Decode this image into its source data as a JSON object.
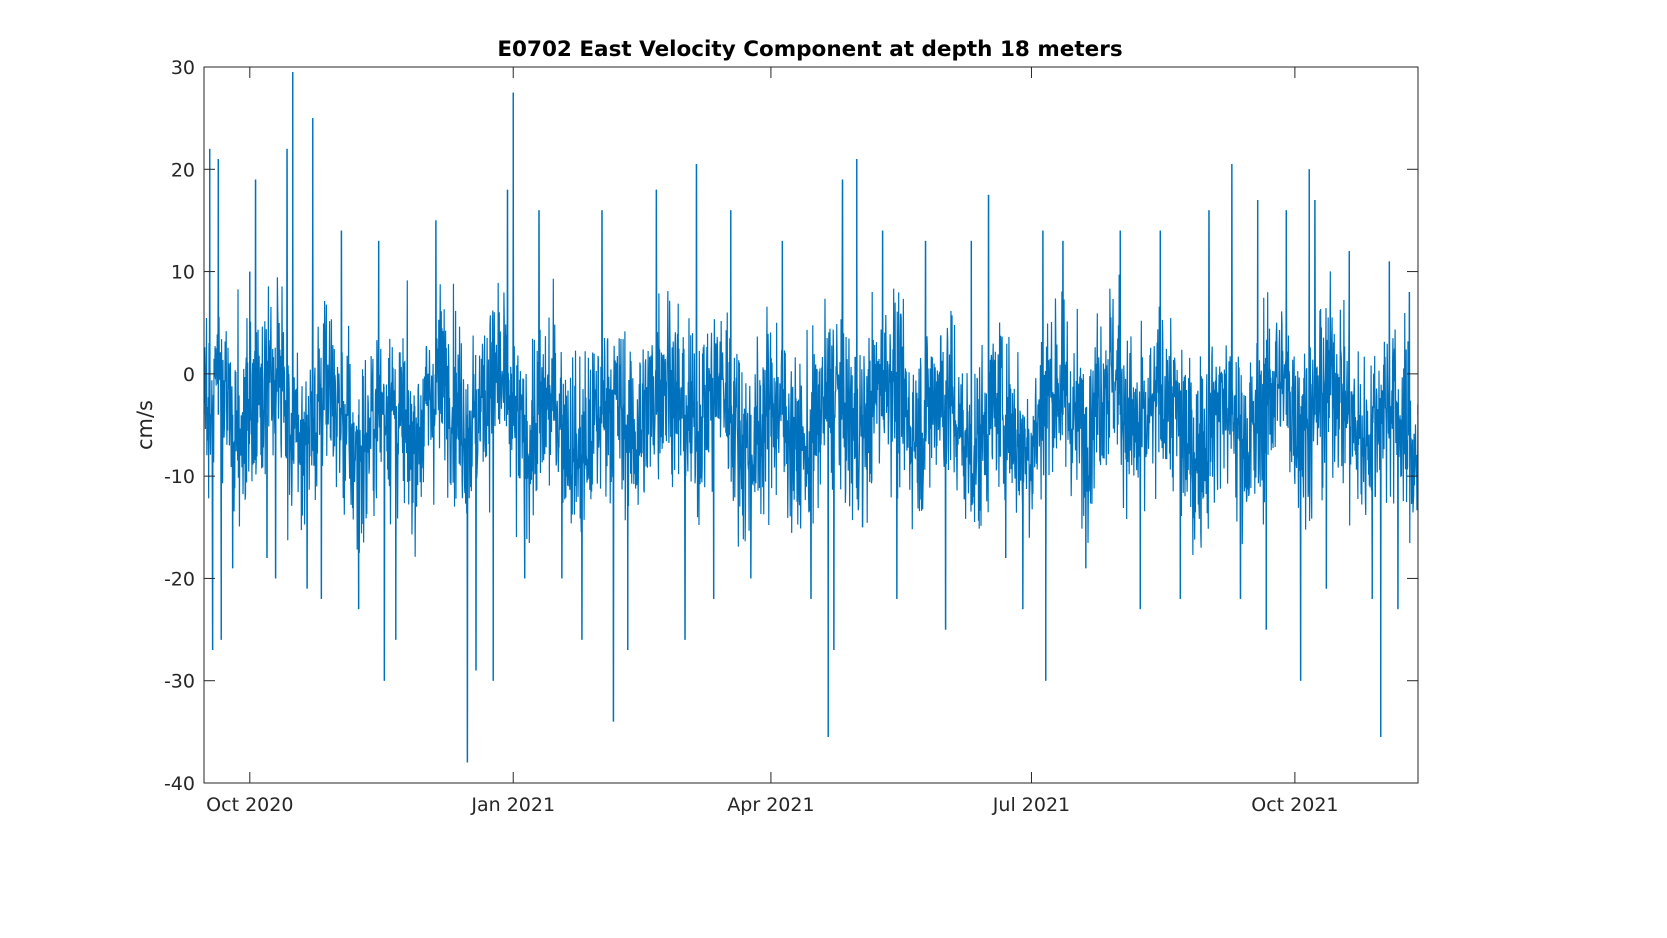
{
  "chart_data": {
    "type": "line",
    "title": "E0702 East Velocity Component at depth 18 meters",
    "xlabel": "",
    "ylabel": "cm/s",
    "xlim": [
      "2020-09-15",
      "2021-11-13"
    ],
    "ylim": [
      -40,
      30
    ],
    "yticks": [
      {
        "value": 30,
        "label": "30"
      },
      {
        "value": 20,
        "label": "20"
      },
      {
        "value": 10,
        "label": "10"
      },
      {
        "value": 0,
        "label": "0"
      },
      {
        "value": -10,
        "label": "-10"
      },
      {
        "value": -20,
        "label": "-20"
      },
      {
        "value": -30,
        "label": "-30"
      },
      {
        "value": -40,
        "label": "-40"
      }
    ],
    "xticks": [
      {
        "date": "2020-10-01",
        "label": "Oct 2020"
      },
      {
        "date": "2021-01-01",
        "label": "Jan 2021"
      },
      {
        "date": "2021-04-01",
        "label": "Apr 2021"
      },
      {
        "date": "2021-07-01",
        "label": "Jul 2021"
      },
      {
        "date": "2021-10-01",
        "label": "Oct 2021"
      }
    ],
    "grid": false,
    "line_color": "#0072BD",
    "series": [
      {
        "values": [
          {
            "x": "2020-09-15",
            "y": -3
          },
          {
            "x": "2020-09-17",
            "y": 22
          },
          {
            "x": "2020-09-18",
            "y": -27
          },
          {
            "x": "2020-09-20",
            "y": 21
          },
          {
            "x": "2020-09-21",
            "y": -26
          },
          {
            "x": "2020-09-25",
            "y": -19
          },
          {
            "x": "2020-10-01",
            "y": 10
          },
          {
            "x": "2020-10-03",
            "y": 19
          },
          {
            "x": "2020-10-07",
            "y": -18
          },
          {
            "x": "2020-10-10",
            "y": -20
          },
          {
            "x": "2020-10-14",
            "y": 22
          },
          {
            "x": "2020-10-16",
            "y": 29.5
          },
          {
            "x": "2020-10-18",
            "y": -7
          },
          {
            "x": "2020-10-21",
            "y": -21
          },
          {
            "x": "2020-10-23",
            "y": 25
          },
          {
            "x": "2020-10-26",
            "y": -22
          },
          {
            "x": "2020-11-02",
            "y": 14
          },
          {
            "x": "2020-11-08",
            "y": -23
          },
          {
            "x": "2020-11-15",
            "y": 13
          },
          {
            "x": "2020-11-17",
            "y": -30
          },
          {
            "x": "2020-11-21",
            "y": -26
          },
          {
            "x": "2020-12-05",
            "y": 15
          },
          {
            "x": "2020-12-16",
            "y": -38
          },
          {
            "x": "2020-12-19",
            "y": -29
          },
          {
            "x": "2020-12-25",
            "y": -30
          },
          {
            "x": "2020-12-30",
            "y": 18
          },
          {
            "x": "2021-01-01",
            "y": 27.5
          },
          {
            "x": "2021-01-05",
            "y": -20
          },
          {
            "x": "2021-01-10",
            "y": 16
          },
          {
            "x": "2021-01-18",
            "y": -20
          },
          {
            "x": "2021-01-25",
            "y": -26
          },
          {
            "x": "2021-02-01",
            "y": 16
          },
          {
            "x": "2021-02-05",
            "y": -34
          },
          {
            "x": "2021-02-10",
            "y": -27
          },
          {
            "x": "2021-02-20",
            "y": 18
          },
          {
            "x": "2021-03-02",
            "y": -26
          },
          {
            "x": "2021-03-06",
            "y": 20.5
          },
          {
            "x": "2021-03-12",
            "y": -22
          },
          {
            "x": "2021-03-18",
            "y": 16
          },
          {
            "x": "2021-03-25",
            "y": -20
          },
          {
            "x": "2021-04-05",
            "y": 13
          },
          {
            "x": "2021-04-15",
            "y": -22
          },
          {
            "x": "2021-04-21",
            "y": -35.5
          },
          {
            "x": "2021-04-23",
            "y": -27
          },
          {
            "x": "2021-04-26",
            "y": 19
          },
          {
            "x": "2021-05-01",
            "y": 21
          },
          {
            "x": "2021-05-03",
            "y": -15
          },
          {
            "x": "2021-05-10",
            "y": 14
          },
          {
            "x": "2021-05-15",
            "y": -22
          },
          {
            "x": "2021-05-25",
            "y": 13
          },
          {
            "x": "2021-06-01",
            "y": -25
          },
          {
            "x": "2021-06-10",
            "y": 13
          },
          {
            "x": "2021-06-16",
            "y": 17.5
          },
          {
            "x": "2021-06-22",
            "y": -18
          },
          {
            "x": "2021-06-28",
            "y": -23
          },
          {
            "x": "2021-07-05",
            "y": 14
          },
          {
            "x": "2021-07-06",
            "y": -30
          },
          {
            "x": "2021-07-12",
            "y": 13
          },
          {
            "x": "2021-07-20",
            "y": -19
          },
          {
            "x": "2021-08-01",
            "y": 14
          },
          {
            "x": "2021-08-08",
            "y": -23
          },
          {
            "x": "2021-08-15",
            "y": 14
          },
          {
            "x": "2021-08-22",
            "y": -22
          },
          {
            "x": "2021-09-01",
            "y": 16
          },
          {
            "x": "2021-09-09",
            "y": 20.5
          },
          {
            "x": "2021-09-12",
            "y": -22
          },
          {
            "x": "2021-09-18",
            "y": 17
          },
          {
            "x": "2021-09-21",
            "y": -25
          },
          {
            "x": "2021-09-28",
            "y": 16
          },
          {
            "x": "2021-10-03",
            "y": -30
          },
          {
            "x": "2021-10-06",
            "y": 20
          },
          {
            "x": "2021-10-08",
            "y": 17
          },
          {
            "x": "2021-10-12",
            "y": -21
          },
          {
            "x": "2021-10-20",
            "y": 12
          },
          {
            "x": "2021-10-28",
            "y": -22
          },
          {
            "x": "2021-10-31",
            "y": -35.5
          },
          {
            "x": "2021-11-03",
            "y": 11
          },
          {
            "x": "2021-11-06",
            "y": -23
          },
          {
            "x": "2021-11-10",
            "y": 8
          },
          {
            "x": "2021-11-13",
            "y": -3
          }
        ]
      }
    ]
  }
}
